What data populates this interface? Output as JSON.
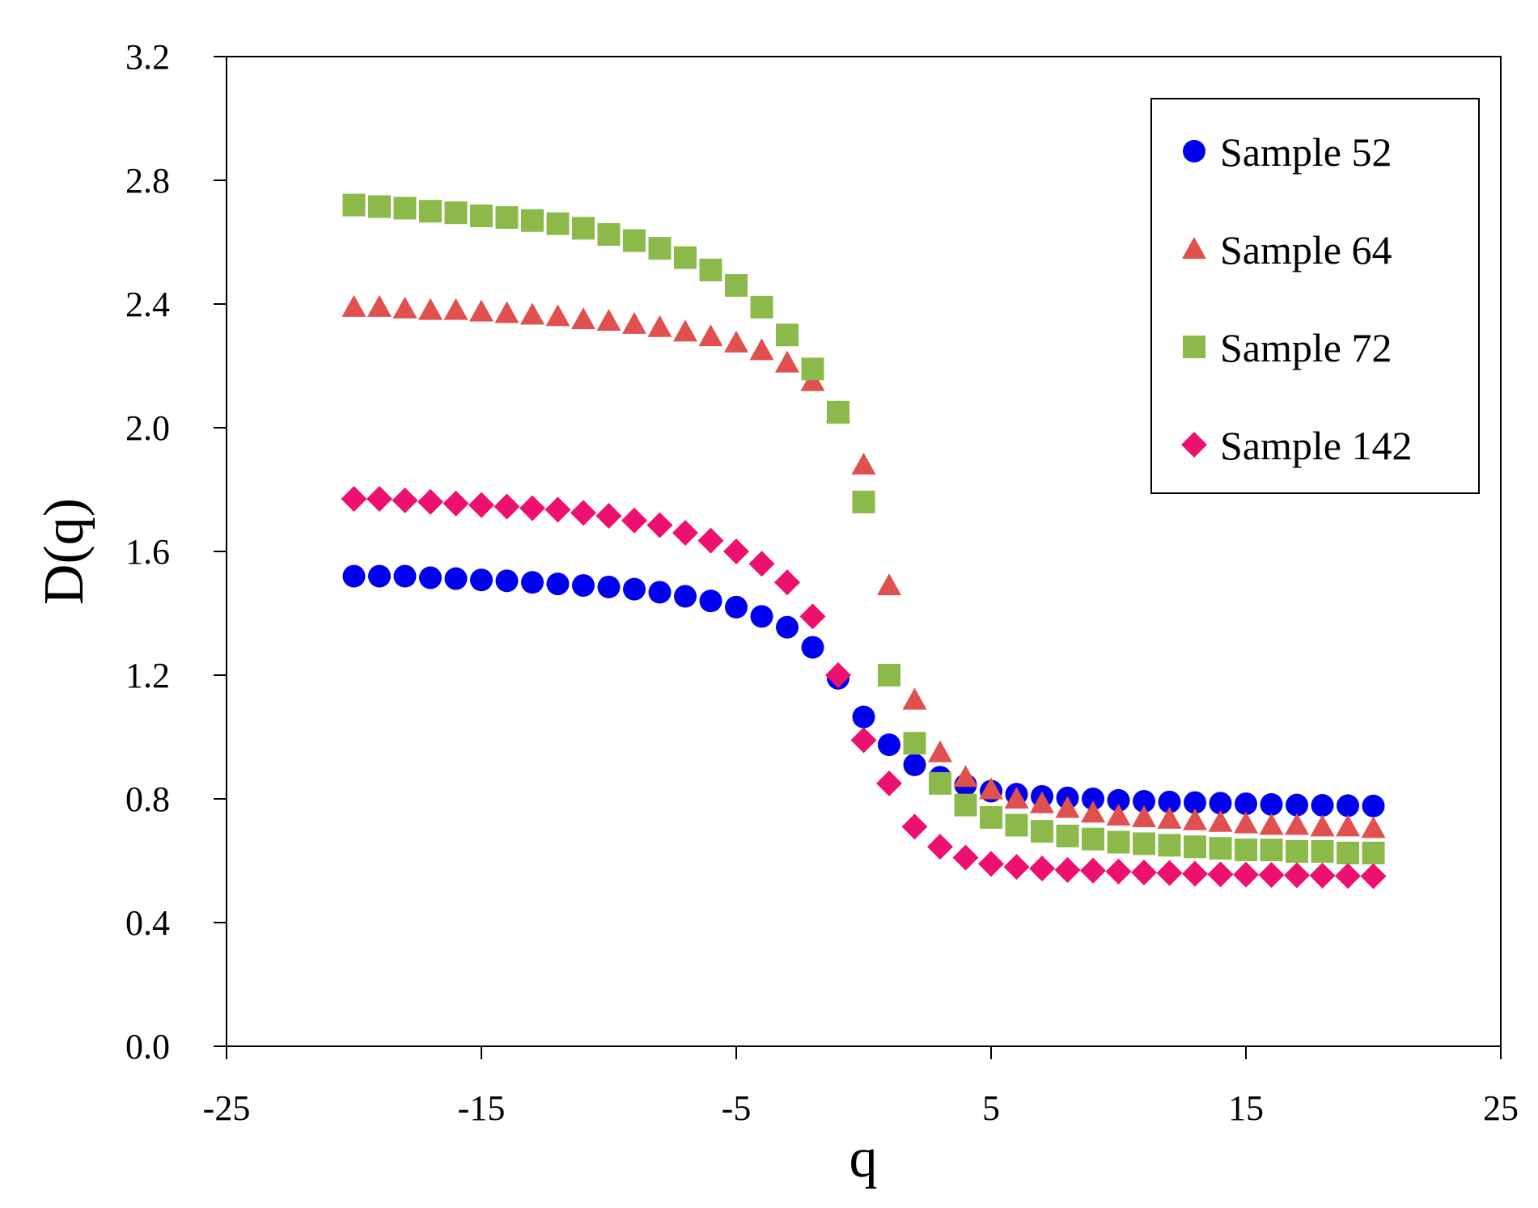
{
  "chart_data": {
    "type": "scatter",
    "title": "",
    "xlabel": "q",
    "ylabel": "D(q)",
    "xlim": [
      -25,
      25
    ],
    "ylim": [
      0.0,
      3.2
    ],
    "xticks": [
      -25,
      -15,
      -5,
      5,
      15,
      25
    ],
    "yticks": [
      0.0,
      0.4,
      0.8,
      1.2,
      1.6,
      2.0,
      2.4,
      2.8,
      3.2
    ],
    "xtick_labels": [
      "-25",
      "-15",
      "-5",
      "5",
      "15",
      "25"
    ],
    "ytick_labels": [
      "0.0",
      "0.4",
      "0.8",
      "1.2",
      "1.6",
      "2.0",
      "2.4",
      "2.8",
      "3.2"
    ],
    "grid": false,
    "legend_position": "top-right",
    "x": [
      -20,
      -19,
      -18,
      -17,
      -16,
      -15,
      -14,
      -13,
      -12,
      -11,
      -10,
      -9,
      -8,
      -7,
      -6,
      -5,
      -4,
      -3,
      -2,
      -1,
      0,
      1,
      2,
      3,
      4,
      5,
      6,
      7,
      8,
      9,
      10,
      11,
      12,
      13,
      14,
      15,
      16,
      17,
      18,
      19,
      20
    ],
    "series": [
      {
        "name": "Sample 52",
        "marker": "circle",
        "color": "#0000ee",
        "values": [
          1.52,
          1.52,
          1.52,
          1.515,
          1.512,
          1.508,
          1.505,
          1.5,
          1.495,
          1.49,
          1.485,
          1.478,
          1.468,
          1.455,
          1.44,
          1.42,
          1.39,
          1.355,
          1.29,
          1.19,
          1.065,
          0.975,
          0.91,
          0.87,
          0.845,
          0.825,
          0.815,
          0.808,
          0.803,
          0.8,
          0.795,
          0.792,
          0.79,
          0.788,
          0.786,
          0.784,
          0.782,
          0.78,
          0.779,
          0.778,
          0.777
        ]
      },
      {
        "name": "Sample 64",
        "marker": "triangle",
        "color": "#e0504e",
        "values": [
          2.39,
          2.39,
          2.385,
          2.38,
          2.38,
          2.375,
          2.37,
          2.365,
          2.36,
          2.35,
          2.345,
          2.335,
          2.325,
          2.31,
          2.295,
          2.275,
          2.25,
          2.21,
          2.15,
          2.05,
          1.88,
          1.49,
          1.12,
          0.95,
          0.87,
          0.83,
          0.8,
          0.785,
          0.77,
          0.755,
          0.745,
          0.74,
          0.735,
          0.73,
          0.725,
          0.72,
          0.715,
          0.715,
          0.71,
          0.71,
          0.705
        ]
      },
      {
        "name": "Sample 72",
        "marker": "square",
        "color": "#8bba4a",
        "values": [
          2.72,
          2.715,
          2.71,
          2.7,
          2.695,
          2.685,
          2.68,
          2.67,
          2.66,
          2.645,
          2.625,
          2.605,
          2.58,
          2.55,
          2.51,
          2.46,
          2.39,
          2.3,
          2.19,
          2.05,
          1.76,
          1.2,
          0.98,
          0.85,
          0.78,
          0.74,
          0.715,
          0.695,
          0.68,
          0.67,
          0.66,
          0.655,
          0.65,
          0.645,
          0.64,
          0.635,
          0.635,
          0.63,
          0.63,
          0.625,
          0.625
        ]
      },
      {
        "name": "Sample 142",
        "marker": "diamond",
        "color": "#ee1070",
        "values": [
          1.77,
          1.77,
          1.765,
          1.76,
          1.755,
          1.75,
          1.745,
          1.74,
          1.735,
          1.725,
          1.715,
          1.7,
          1.685,
          1.66,
          1.635,
          1.6,
          1.56,
          1.5,
          1.39,
          1.2,
          0.99,
          0.85,
          0.71,
          0.645,
          0.61,
          0.59,
          0.58,
          0.575,
          0.57,
          0.568,
          0.565,
          0.562,
          0.56,
          0.558,
          0.556,
          0.555,
          0.554,
          0.553,
          0.552,
          0.551,
          0.55
        ]
      }
    ]
  }
}
